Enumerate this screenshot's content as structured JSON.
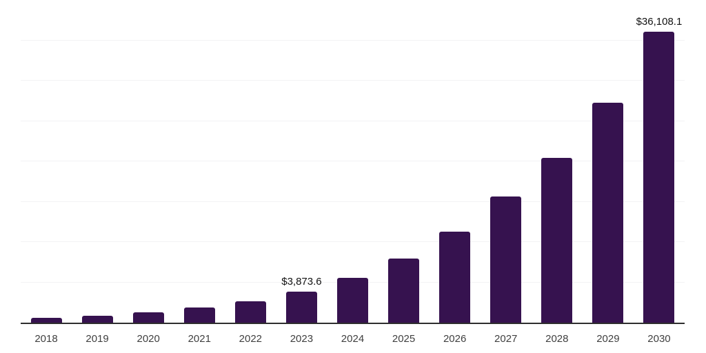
{
  "chart_data": {
    "type": "bar",
    "title": "",
    "xlabel": "",
    "ylabel": "",
    "categories": [
      "2018",
      "2019",
      "2020",
      "2021",
      "2022",
      "2023",
      "2024",
      "2025",
      "2026",
      "2027",
      "2028",
      "2029",
      "2030"
    ],
    "values": [
      620,
      875,
      1250,
      1860,
      2690,
      3873.6,
      5535,
      7990,
      11250,
      15680,
      20430,
      27270,
      36108.1
    ],
    "data_labels": [
      {
        "index": 5,
        "text": "$3,873.6"
      },
      {
        "index": 12,
        "text": "$36,108.1"
      }
    ],
    "ylim": [
      0,
      40000
    ],
    "ytick_step": 5000,
    "grid": true,
    "y_axis_labels_visible": false,
    "legend_position": "none"
  },
  "style": {
    "bar_color": "#36124F",
    "grid_color": "#f2f2f4",
    "axis_color": "#2e2e2e",
    "tick_label_color": "#3f3f3f",
    "data_label_color": "#111111",
    "background": "#ffffff"
  }
}
